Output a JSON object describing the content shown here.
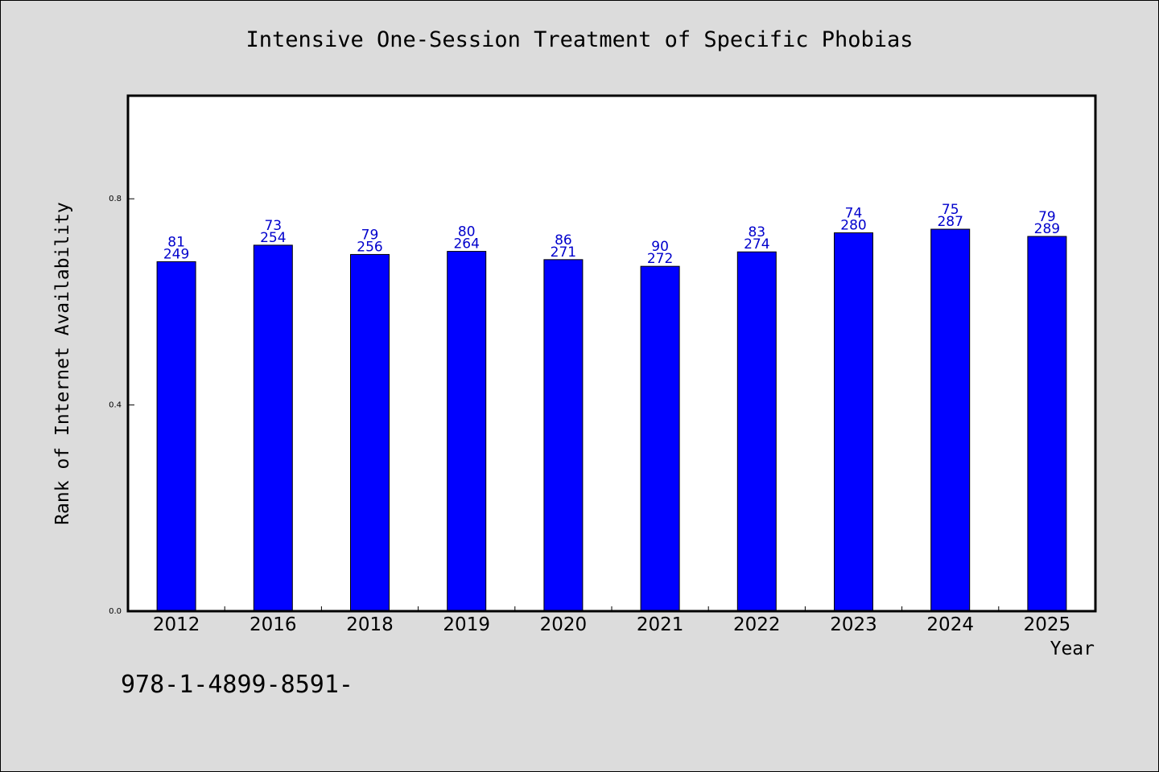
{
  "chart_data": {
    "type": "bar",
    "title": "Intensive One-Session Treatment of Specific Phobias",
    "xlabel": "Year",
    "ylabel": "Rank of Internet Availability",
    "categories": [
      "2012",
      "2016",
      "2018",
      "2019",
      "2020",
      "2021",
      "2022",
      "2023",
      "2024",
      "2025"
    ],
    "values": [
      0.678,
      0.71,
      0.692,
      0.698,
      0.682,
      0.669,
      0.697,
      0.734,
      0.741,
      0.727
    ],
    "bar_labels_top": [
      "81",
      "73",
      "79",
      "80",
      "86",
      "90",
      "83",
      "74",
      "75",
      "79"
    ],
    "bar_labels_bottom": [
      "249",
      "254",
      "256",
      "264",
      "271",
      "272",
      "274",
      "280",
      "287",
      "289"
    ],
    "ylim": [
      0.0,
      1.0
    ],
    "yticks": [
      "0.0",
      "0.4",
      "0.8"
    ],
    "grid": false,
    "colors": {
      "bar": "#0000ff",
      "bar_label": "#0000cc",
      "background": "#dcdcdc",
      "plot_background": "#ffffff"
    }
  },
  "footnote": "978-1-4899-8591-"
}
